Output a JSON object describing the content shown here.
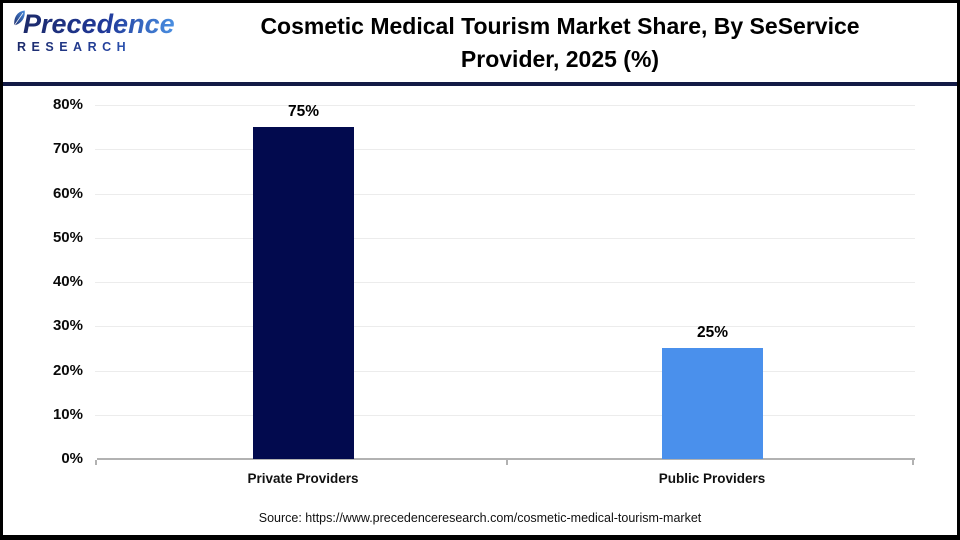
{
  "header": {
    "logo_line1": "Precedence",
    "logo_line2": "RESEARCH",
    "title_line1": "Cosmetic Medical Tourism Market Share, By SeService",
    "title_line2": "Provider, 2025 (%)"
  },
  "chart_data": {
    "type": "bar",
    "title": "Cosmetic Medical Tourism Market Share, By SeService Provider, 2025 (%)",
    "categories": [
      "Private Providers",
      "Public Providers"
    ],
    "values": [
      75,
      25
    ],
    "value_labels": [
      "75%",
      "25%"
    ],
    "bar_colors": [
      "#020a4e",
      "#4a90ec"
    ],
    "xlabel": "",
    "ylabel": "",
    "ylim": [
      0,
      80
    ],
    "yticks": [
      "80%",
      "70%",
      "60%",
      "50%",
      "40%",
      "30%",
      "20%",
      "10%",
      "0%"
    ],
    "grid": true,
    "legend": "none"
  },
  "footer": {
    "source": "Source: https://www.precedenceresearch.com/cosmetic-medical-tourism-market"
  },
  "colors": {
    "bar_private": "#020a4e",
    "bar_public": "#4a90ec",
    "header_divider": "#131a45",
    "gridline": "#ececec",
    "axis": "#b2b2b2",
    "logo_navy": "#1c2a6a",
    "logo_blue": "#4a90e2"
  }
}
